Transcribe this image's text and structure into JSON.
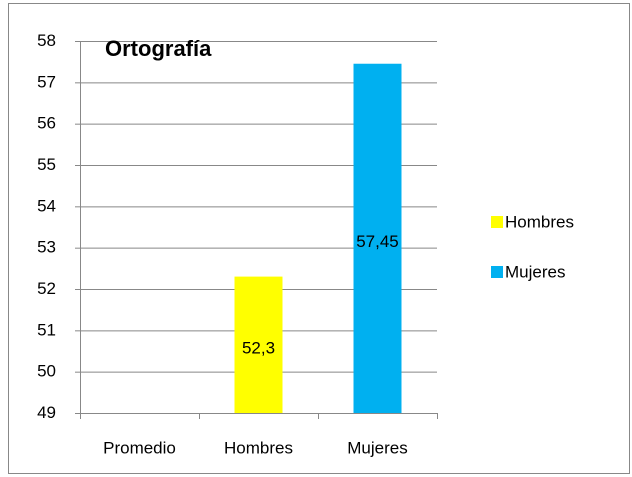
{
  "chart_data": {
    "type": "bar",
    "title": "Ortografía",
    "categories": [
      "Promedio",
      "Hombres",
      "Mujeres"
    ],
    "series": [
      {
        "name": "Hombres",
        "color": "#ffff00",
        "values": [
          null,
          52.3,
          null
        ],
        "value_labels": [
          null,
          "52,3",
          null
        ]
      },
      {
        "name": "Mujeres",
        "color": "#00b0f0",
        "values": [
          null,
          null,
          57.45
        ],
        "value_labels": [
          null,
          null,
          "57,45"
        ]
      }
    ],
    "ylim": [
      49,
      58
    ],
    "yticks": [
      49,
      50,
      51,
      52,
      53,
      54,
      55,
      56,
      57,
      58
    ],
    "grid": true,
    "legend": "right"
  }
}
